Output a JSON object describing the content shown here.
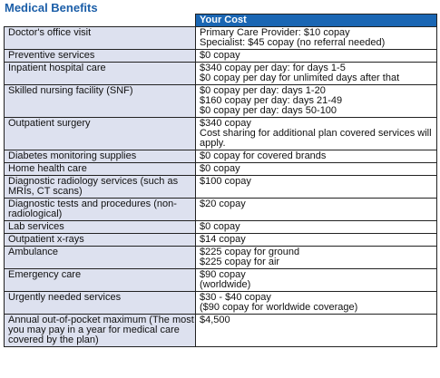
{
  "title": "Medical Benefits",
  "table": {
    "header_left": "",
    "header_right": "Your Cost",
    "rows": [
      {
        "service": [
          "Doctor's office visit"
        ],
        "cost": [
          "Primary Care Provider: $10 copay",
          "Specialist:  $45 copay (no referral needed)"
        ]
      },
      {
        "service": [
          "Preventive services"
        ],
        "cost": [
          "$0 copay"
        ]
      },
      {
        "service": [
          "Inpatient hospital care"
        ],
        "cost": [
          "$340 copay per day: for days 1-5",
          "$0 copay per day for unlimited days after that"
        ]
      },
      {
        "service": [
          "Skilled nursing facility (SNF)"
        ],
        "cost": [
          "$0 copay per day: days 1-20",
          "$160 copay per day: days 21-49",
          "$0 copay per day: days 50-100"
        ]
      },
      {
        "service": [
          "Outpatient surgery"
        ],
        "cost": [
          "$340 copay",
          "Cost sharing for additional plan covered services will",
          "apply."
        ]
      },
      {
        "service": [
          "Diabetes monitoring supplies"
        ],
        "cost": [
          "$0 copay for covered brands"
        ]
      },
      {
        "service": [
          "Home health care"
        ],
        "cost": [
          "$0 copay"
        ]
      },
      {
        "service": [
          "Diagnostic radiology services (such as",
          "MRIs, CT scans)"
        ],
        "cost": [
          "$100 copay"
        ]
      },
      {
        "service": [
          "Diagnostic tests and procedures (non-",
          "radiological)"
        ],
        "cost": [
          "$20 copay"
        ]
      },
      {
        "service": [
          "Lab services"
        ],
        "cost": [
          "$0 copay"
        ]
      },
      {
        "service": [
          "Outpatient x-rays"
        ],
        "cost": [
          "$14 copay"
        ]
      },
      {
        "service": [
          "Ambulance"
        ],
        "cost": [
          "$225 copay for ground",
          "$225 copay for air"
        ]
      },
      {
        "service": [
          "Emergency care"
        ],
        "cost": [
          "$90 copay",
          "(worldwide)"
        ]
      },
      {
        "service": [
          "Urgently needed services"
        ],
        "cost": [
          "$30 - $40 copay",
          "($90 copay for worldwide coverage)"
        ]
      },
      {
        "service": [
          "Annual out-of-pocket maximum (The most",
          "you may pay in a year for medical care",
          "covered by the plan)"
        ],
        "cost": [
          "$4,500"
        ]
      }
    ]
  },
  "colors": {
    "title": "#1b5ea8",
    "header_fill": "#1a66b3",
    "service_fill": "#dde1ef"
  }
}
